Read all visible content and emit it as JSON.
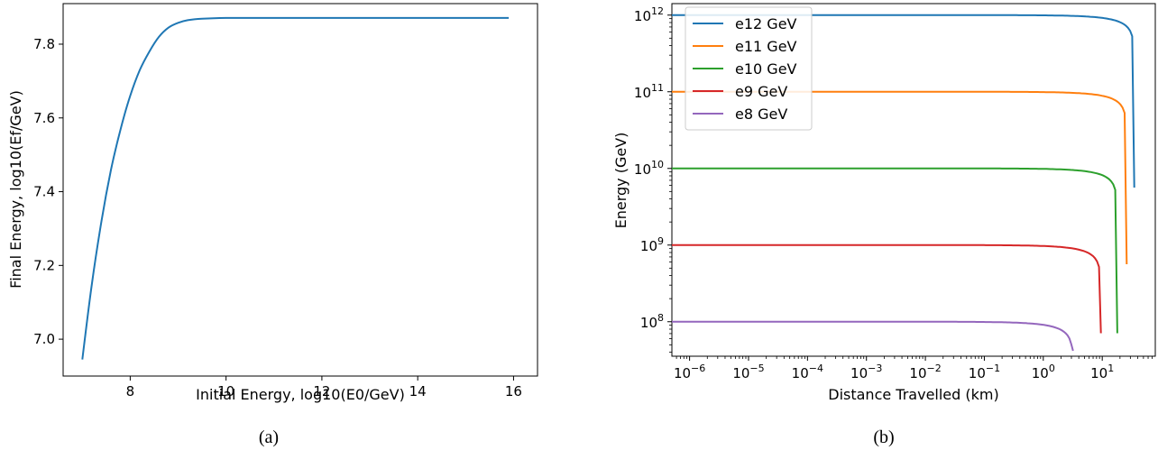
{
  "chart_data": [
    {
      "type": "line",
      "xlabel": "Initial Energy, log10(E0/GeV)",
      "ylabel": "Final Energy, log10(Ef/GeV)",
      "xlim": [
        6.6,
        16.5
      ],
      "ylim": [
        6.9,
        7.91
      ],
      "xticks": [
        8,
        10,
        12,
        14,
        16
      ],
      "yticks": [
        7.0,
        7.2,
        7.4,
        7.6,
        7.8
      ],
      "xtick_labels": [
        "8",
        "10",
        "12",
        "14",
        "16"
      ],
      "ytick_labels": [
        "7.0",
        "7.2",
        "7.4",
        "7.6",
        "7.8"
      ],
      "color": "#1f77b4",
      "series": [
        {
          "x": [
            7.0,
            7.2,
            7.4,
            7.6,
            7.8,
            8.0,
            8.2,
            8.4,
            8.6,
            8.8,
            9.0,
            9.2,
            9.5,
            10.0,
            11.0,
            12.0,
            13.0,
            14.0,
            15.0,
            15.9
          ],
          "y": [
            6.945,
            7.15,
            7.32,
            7.46,
            7.57,
            7.66,
            7.73,
            7.78,
            7.82,
            7.845,
            7.858,
            7.865,
            7.869,
            7.871,
            7.871,
            7.871,
            7.871,
            7.871,
            7.871,
            7.871
          ]
        }
      ],
      "caption": "(a)"
    },
    {
      "type": "line",
      "xscale": "log",
      "yscale": "log",
      "xlabel": "Distance Travelled (km)",
      "ylabel": "Energy (GeV)",
      "xlim_log10": [
        -6.3,
        1.9
      ],
      "ylim_log10": [
        7.55,
        12.15
      ],
      "xtick_exponents": [
        -6,
        -5,
        -4,
        -3,
        -2,
        -1,
        0,
        1
      ],
      "ytick_exponents": [
        8,
        9,
        10,
        11,
        12
      ],
      "legend_position": "top-left",
      "series": [
        {
          "name": "e12 GeV",
          "color": "#1f77b4",
          "E0_log10": 12,
          "end_distance_km": 35
        },
        {
          "name": "e11 GeV",
          "color": "#ff7f0e",
          "E0_log10": 11,
          "end_distance_km": 26
        },
        {
          "name": "e10 GeV",
          "color": "#2ca02c",
          "E0_log10": 10,
          "end_distance_km": 18
        },
        {
          "name": "e9 GeV",
          "color": "#d62728",
          "E0_log10": 9,
          "end_distance_km": 9.5
        },
        {
          "name": "e8 GeV",
          "color": "#9467bd",
          "E0_log10": 8,
          "end_distance_km": 3.2
        }
      ],
      "caption": "(b)"
    }
  ]
}
